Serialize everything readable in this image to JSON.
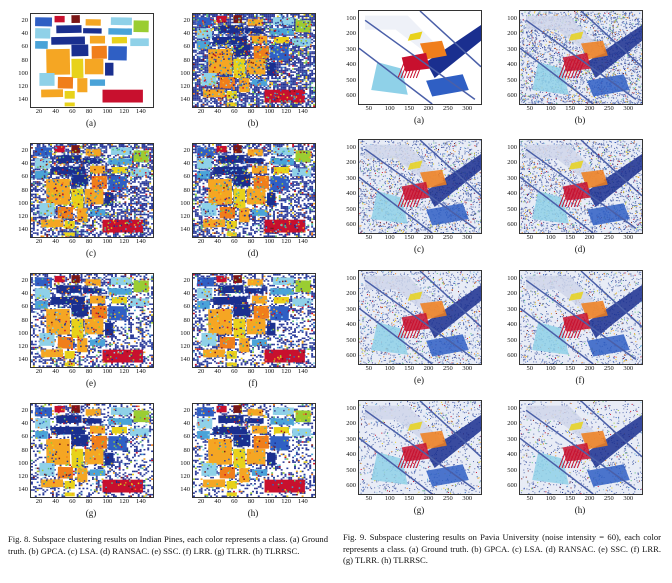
{
  "fig8": {
    "caption": "Fig. 8.  Subspace clustering results on Indian Pines, each color represents a class. (a) Ground truth. (b) GPCA. (c) LSA. (d) RANSAC. (e) SSC. (f) LRR. (g) TLRR. (h) TLRRSC.",
    "xticks": [
      "20",
      "40",
      "60",
      "80",
      "100",
      "120",
      "140"
    ],
    "yticks": [
      "20",
      "40",
      "60",
      "80",
      "100",
      "120",
      "140"
    ],
    "panels": [
      {
        "label": "(a)",
        "name": "Ground truth",
        "noise": 0.0
      },
      {
        "label": "(b)",
        "name": "GPCA",
        "noise": 0.72
      },
      {
        "label": "(c)",
        "name": "LSA",
        "noise": 0.58
      },
      {
        "label": "(d)",
        "name": "RANSAC",
        "noise": 0.55
      },
      {
        "label": "(e)",
        "name": "SSC",
        "noise": 0.42
      },
      {
        "label": "(f)",
        "name": "LRR",
        "noise": 0.38
      },
      {
        "label": "(g)",
        "name": "TLRR",
        "noise": 0.34
      },
      {
        "label": "(h)",
        "name": "TLRRSC",
        "noise": 0.3
      }
    ]
  },
  "fig9": {
    "caption": "Fig. 9.  Subspace clustering results on Pavia University (noise intensity = 60), each color represents a class. (a) Ground truth. (b) GPCA. (c) LSA. (d) RANSAC. (e) SSC. (f) LRR. (g) TLRR. (h) TLRRSC.",
    "xticks": [
      "50",
      "100",
      "150",
      "200",
      "250",
      "300"
    ],
    "yticks": [
      "100",
      "200",
      "300",
      "400",
      "500",
      "600"
    ],
    "panels": [
      {
        "label": "(a)",
        "name": "Ground truth",
        "noise": 0.0
      },
      {
        "label": "(b)",
        "name": "GPCA",
        "noise": 0.8
      },
      {
        "label": "(c)",
        "name": "LSA",
        "noise": 0.6
      },
      {
        "label": "(d)",
        "name": "RANSAC",
        "noise": 0.62
      },
      {
        "label": "(e)",
        "name": "SSC",
        "noise": 0.45
      },
      {
        "label": "(f)",
        "name": "LRR",
        "noise": 0.4
      },
      {
        "label": "(g)",
        "name": "TLRR",
        "noise": 0.32
      },
      {
        "label": "(h)",
        "name": "TLRRSC",
        "noise": 0.28
      }
    ]
  },
  "palette": [
    "#1a2f8f",
    "#2f5fc4",
    "#4aa3d8",
    "#8fd1e8",
    "#f5a623",
    "#f07e1b",
    "#e8d21a",
    "#c8102e",
    "#7a1616",
    "#9acd32",
    "#5bbf7a",
    "#3b3b8f"
  ]
}
